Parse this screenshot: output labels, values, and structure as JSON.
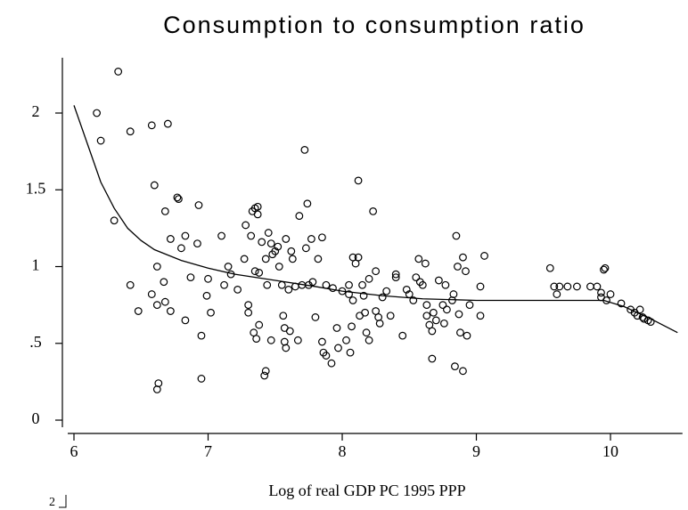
{
  "chart_data": {
    "type": "scatter",
    "title": "Consumption to consumption ratio",
    "x_label": "Log of real GDP PC 1995 PPP",
    "corner_label": "2",
    "xlim": [
      5.9,
      10.55
    ],
    "xticks": [
      6,
      7,
      8,
      9,
      10
    ],
    "ylim": [
      -0.07,
      2.36
    ],
    "yticks": [
      0,
      {
        "value": 0.5,
        "label": ".5"
      },
      1,
      1.5,
      2
    ],
    "color": "#000000",
    "points": {
      "x": [
        6.17,
        6.2,
        6.33,
        6.3,
        6.42,
        6.42,
        6.48,
        6.58,
        6.6,
        6.58,
        6.62,
        6.62,
        6.63,
        6.62,
        6.67,
        6.68,
        6.68,
        6.7,
        6.72,
        6.72,
        6.77,
        6.78,
        6.8,
        6.83,
        6.83,
        6.87,
        6.92,
        6.93,
        6.95,
        6.95,
        6.99,
        7.0,
        7.02,
        7.1,
        7.12,
        7.15,
        7.17,
        7.22,
        7.27,
        7.28,
        7.3,
        7.3,
        7.32,
        7.33,
        7.34,
        7.35,
        7.35,
        7.36,
        7.37,
        7.37,
        7.38,
        7.38,
        7.4,
        7.42,
        7.43,
        7.44,
        7.43,
        7.45,
        7.47,
        7.47,
        7.48,
        7.5,
        7.52,
        7.53,
        7.55,
        7.56,
        7.57,
        7.57,
        7.58,
        7.58,
        7.6,
        7.61,
        7.62,
        7.63,
        7.65,
        7.67,
        7.68,
        7.7,
        7.72,
        7.73,
        7.74,
        7.75,
        7.77,
        7.78,
        7.8,
        7.82,
        7.85,
        7.85,
        7.86,
        7.88,
        7.88,
        7.92,
        7.93,
        7.96,
        7.97,
        8.0,
        8.03,
        8.05,
        8.05,
        8.06,
        8.07,
        8.08,
        8.08,
        8.1,
        8.12,
        8.12,
        8.13,
        8.15,
        8.16,
        8.17,
        8.18,
        8.2,
        8.2,
        8.23,
        8.25,
        8.25,
        8.27,
        8.28,
        8.3,
        8.33,
        8.36,
        8.4,
        8.4,
        8.45,
        8.48,
        8.5,
        8.53,
        8.55,
        8.57,
        8.58,
        8.6,
        8.62,
        8.63,
        8.63,
        8.65,
        8.67,
        8.67,
        8.68,
        8.7,
        8.72,
        8.75,
        8.76,
        8.77,
        8.78,
        8.82,
        8.83,
        8.84,
        8.85,
        8.86,
        8.87,
        8.88,
        8.9,
        8.9,
        8.92,
        8.93,
        8.95,
        9.03,
        9.03,
        9.06,
        9.55,
        9.58,
        9.6,
        9.62,
        9.68,
        9.75,
        9.85,
        9.9,
        9.93,
        9.93,
        9.95,
        9.96,
        9.97,
        10.0,
        10.08,
        10.15,
        10.18,
        10.2,
        10.22,
        10.24,
        10.25,
        10.28,
        10.3
      ],
      "y": [
        2.0,
        1.82,
        2.27,
        1.3,
        1.88,
        0.88,
        0.71,
        1.92,
        1.53,
        0.82,
        1.0,
        0.75,
        0.24,
        0.2,
        0.9,
        1.36,
        0.77,
        1.93,
        1.18,
        0.71,
        1.45,
        1.44,
        1.12,
        0.65,
        1.2,
        0.93,
        1.15,
        1.4,
        0.55,
        0.27,
        0.81,
        0.92,
        0.7,
        1.2,
        0.88,
        1.0,
        0.95,
        0.85,
        1.05,
        1.27,
        0.75,
        0.7,
        1.2,
        1.36,
        0.57,
        1.38,
        0.97,
        0.53,
        1.34,
        1.39,
        0.96,
        0.62,
        1.16,
        0.29,
        0.32,
        0.88,
        1.05,
        1.22,
        1.15,
        0.52,
        1.08,
        1.1,
        1.13,
        1.0,
        0.88,
        0.68,
        0.6,
        0.51,
        0.47,
        1.18,
        0.85,
        0.58,
        1.1,
        1.05,
        0.87,
        0.52,
        1.33,
        0.88,
        1.76,
        1.12,
        1.41,
        0.88,
        1.18,
        0.9,
        0.67,
        1.05,
        1.19,
        0.51,
        0.44,
        0.42,
        0.88,
        0.37,
        0.86,
        0.6,
        0.47,
        0.84,
        0.52,
        0.82,
        0.88,
        0.44,
        0.61,
        1.06,
        0.78,
        1.02,
        1.56,
        1.06,
        0.68,
        0.88,
        0.81,
        0.7,
        0.57,
        0.52,
        0.92,
        1.36,
        0.97,
        0.71,
        0.67,
        0.63,
        0.8,
        0.84,
        0.68,
        0.95,
        0.93,
        0.55,
        0.85,
        0.82,
        0.78,
        0.93,
        1.05,
        0.9,
        0.88,
        1.02,
        0.75,
        0.68,
        0.62,
        0.4,
        0.58,
        0.7,
        0.65,
        0.91,
        0.75,
        0.63,
        0.88,
        0.72,
        0.78,
        0.82,
        0.35,
        1.2,
        1.0,
        0.69,
        0.57,
        1.06,
        0.32,
        0.97,
        0.55,
        0.75,
        0.68,
        0.87,
        1.07,
        0.99,
        0.87,
        0.82,
        0.87,
        0.87,
        0.87,
        0.87,
        0.87,
        0.8,
        0.83,
        0.98,
        0.99,
        0.78,
        0.82,
        0.76,
        0.72,
        0.7,
        0.68,
        0.72,
        0.67,
        0.66,
        0.65,
        0.64
      ]
    },
    "fit": {
      "x": [
        6.0,
        6.1,
        6.2,
        6.3,
        6.4,
        6.5,
        6.6,
        6.8,
        7.0,
        7.2,
        7.5,
        7.8,
        8.0,
        8.3,
        8.6,
        9.0,
        9.5,
        9.95,
        10.1,
        10.3,
        10.5
      ],
      "y": [
        2.05,
        1.8,
        1.55,
        1.38,
        1.25,
        1.17,
        1.11,
        1.04,
        0.99,
        0.95,
        0.91,
        0.87,
        0.84,
        0.81,
        0.79,
        0.78,
        0.78,
        0.78,
        0.74,
        0.66,
        0.57
      ]
    }
  }
}
